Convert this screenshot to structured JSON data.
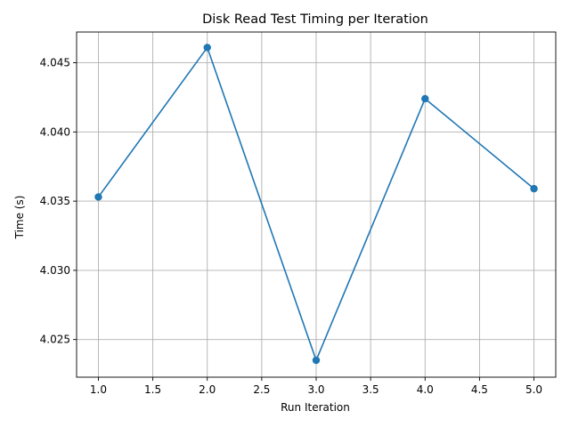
{
  "chart_data": {
    "type": "line",
    "title": "Disk Read Test Timing per Iteration",
    "xlabel": "Run Iteration",
    "ylabel": "Time (s)",
    "xlim": [
      0.8,
      5.2
    ],
    "ylim": [
      4.02228,
      4.04722
    ],
    "x_ticks": [
      1.0,
      1.5,
      2.0,
      2.5,
      3.0,
      3.5,
      4.0,
      4.5,
      5.0
    ],
    "x_tick_labels": [
      "1.0",
      "1.5",
      "2.0",
      "2.5",
      "3.0",
      "3.5",
      "4.0",
      "4.5",
      "5.0"
    ],
    "y_ticks": [
      4.025,
      4.03,
      4.035,
      4.04,
      4.045
    ],
    "y_tick_labels": [
      "4.025",
      "4.030",
      "4.035",
      "4.040",
      "4.045"
    ],
    "grid": true,
    "series": [
      {
        "x": [
          1,
          2,
          3,
          4,
          5
        ],
        "values": [
          4.0353,
          4.0461,
          4.0235,
          4.0424,
          4.0359
        ],
        "color": "#1f77b4",
        "marker": "circle"
      }
    ]
  }
}
